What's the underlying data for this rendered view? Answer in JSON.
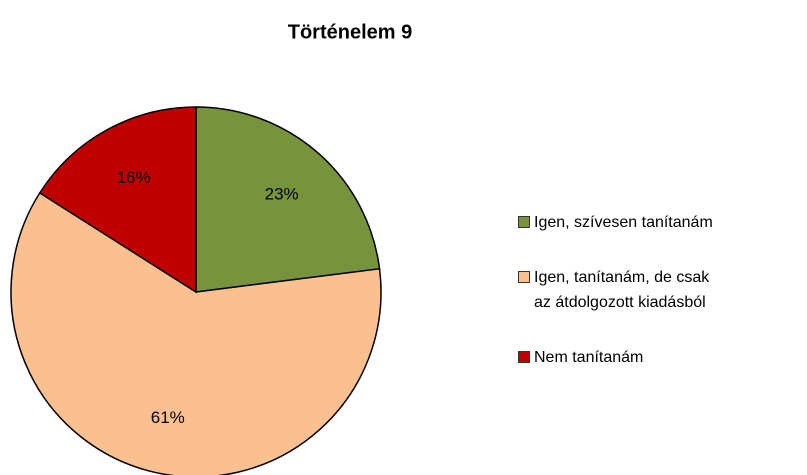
{
  "chart_data": {
    "type": "pie",
    "title": "Történelem 9",
    "categories": [
      "Igen, szívesen tanítanám",
      "Igen, tanítanám, de csak\naz átdolgozott kiadásból",
      "Nem tanítanám"
    ],
    "values": [
      23,
      61,
      16
    ],
    "value_labels": [
      "23%",
      "61%",
      "16%"
    ],
    "colors": [
      "#77933c",
      "#fac090",
      "#c00000"
    ],
    "legend": "right"
  }
}
